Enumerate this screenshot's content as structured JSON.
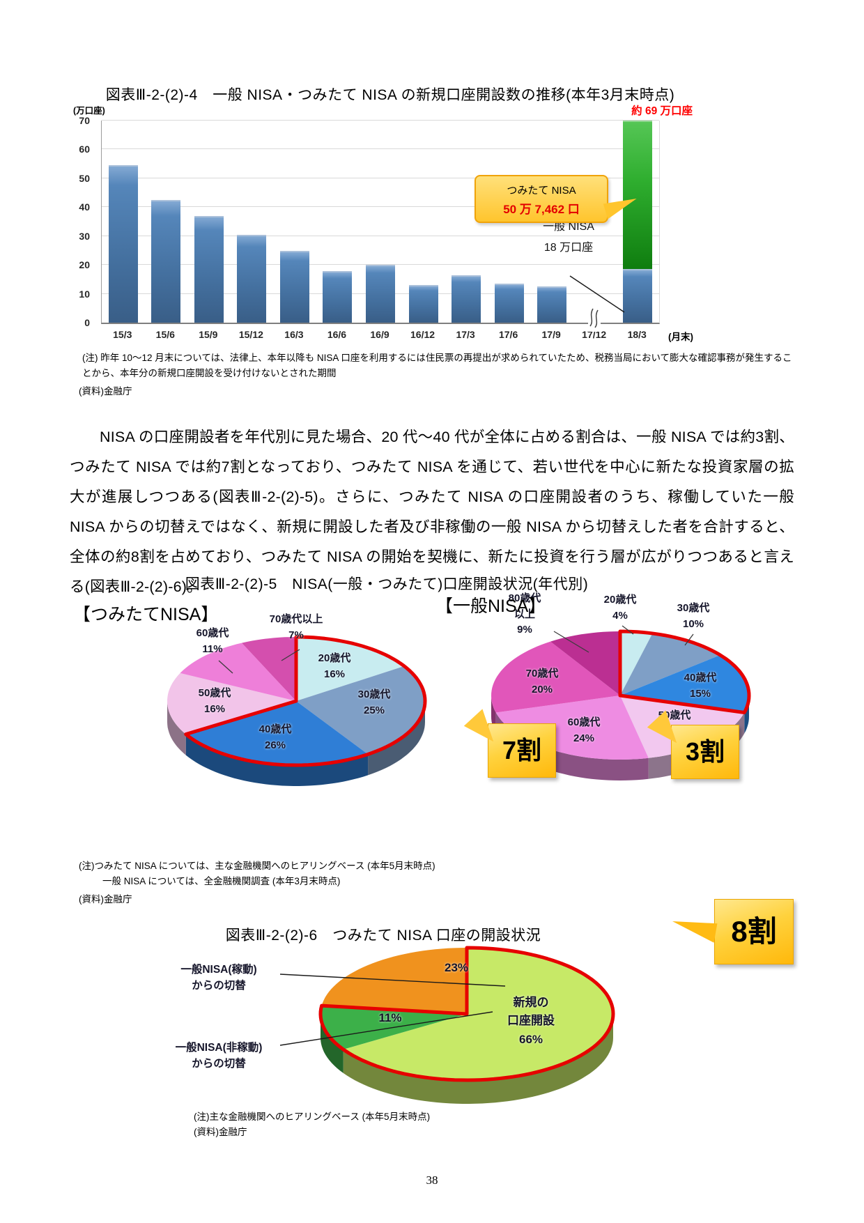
{
  "page_number": "38",
  "fig4": {
    "note": "(注) 昨年 10〜12 月末については、法律上、本年以降も NISA 口座を利用するには住民票の再提出が求められていたため、税務当局において膨大な確認事務が発生することから、本年分の新規口座開設を受け付けないとされた期間",
    "source": "(資料)金融庁"
  },
  "body_paragraph": "NISA の口座開設者を年代別に見た場合、20 代〜40 代が全体に占める割合は、一般 NISA では約3割、つみたて NISA では約7割となっており、つみたて NISA を通じて、若い世代を中心に新たな投資家層の拡大が進展しつつある(図表Ⅲ-2-(2)-5)。さらに、つみたて NISA の口座開設者のうち、稼働していた一般 NISA からの切替えではなく、新規に開設した者及び非稼働の一般 NISA から切替えした者を合計すると、全体の約8割を占めており、つみたて NISA の開始を契機に、新たに投資を行う層が広がりつつあると言える(図表Ⅲ-2-(2)-6)。",
  "fig5": {
    "title": "図表Ⅲ-2-(2)-5　NISA(一般・つみたて)口座開設状況(年代別)",
    "note1": "(注)つみたて NISA については、主な金融機関へのヒアリングベース (本年5月末時点)",
    "note2": "一般 NISA については、全金融機関調査 (本年3月末時点)",
    "source": "(資料)金融庁"
  },
  "fig6": {
    "title": "図表Ⅲ-2-(2)-6　つみたて NISA 口座の開設状況",
    "note": "(注)主な金融機関へのヒアリングベース (本年5月末時点)",
    "source": "(資料)金融庁"
  },
  "chart_data": [
    {
      "id": "fig4",
      "type": "bar",
      "title": "図表Ⅲ-2-(2)-4　一般 NISA・つみたて NISA の新規口座開設数の推移(本年3月末時点)",
      "y_unit": "(万口座)",
      "x_unit": "(月末)",
      "ylim": [
        0,
        70
      ],
      "yticks": [
        0,
        10,
        20,
        30,
        40,
        50,
        60,
        70
      ],
      "categories": [
        "15/3",
        "15/6",
        "15/9",
        "15/12",
        "16/3",
        "16/6",
        "16/9",
        "16/12",
        "17/3",
        "17/6",
        "17/9",
        "17/12",
        "18/3"
      ],
      "axis_break_category": "17/12",
      "series": [
        {
          "name": "一般NISA",
          "color": "#4a7ab2",
          "values": [
            54,
            42,
            36.5,
            30,
            24.5,
            17.5,
            19.5,
            12.5,
            16,
            13,
            12,
            null,
            18
          ]
        },
        {
          "name": "つみたてNISA",
          "color": "#2aa52a",
          "values": [
            null,
            null,
            null,
            null,
            null,
            null,
            null,
            null,
            null,
            null,
            null,
            null,
            51
          ]
        }
      ],
      "annotations": {
        "total": "約 69 万口座",
        "tsumitate_name": "つみたて NISA",
        "tsumitate_value": "50 万 7,462 口",
        "ippan_name": "一般 NISA",
        "ippan_value": "18 万口座"
      }
    },
    {
      "id": "fig5_tsumitate",
      "type": "pie",
      "title": "【つみたてNISA】",
      "slices": [
        {
          "label": "20歳代",
          "value": 16,
          "pct": "16%",
          "color": "#c8ecf0"
        },
        {
          "label": "30歳代",
          "value": 25,
          "pct": "25%",
          "color": "#7f9fc6"
        },
        {
          "label": "40歳代",
          "value": 26,
          "pct": "26%",
          "color": "#2f7ed6"
        },
        {
          "label": "50歳代",
          "value": 16,
          "pct": "16%",
          "color": "#f2c4e9"
        },
        {
          "label": "60歳代",
          "value": 11,
          "pct": "11%",
          "color": "#ee7fd9"
        },
        {
          "label": "70歳代以上",
          "value": 7,
          "pct": "7%",
          "color": "#d44fae"
        }
      ],
      "highlight": {
        "start_index": 0,
        "end_index": 2,
        "label": "7割",
        "color": "#e60000"
      }
    },
    {
      "id": "fig5_ippan",
      "type": "pie",
      "title": "【一般NISA】",
      "slices": [
        {
          "label": "20歳代",
          "value": 4,
          "pct": "4%",
          "color": "#c8ecf0"
        },
        {
          "label": "30歳代",
          "value": 10,
          "pct": "10%",
          "color": "#7f9fc6"
        },
        {
          "label": "40歳代",
          "value": 15,
          "pct": "15%",
          "color": "#2f87e0"
        },
        {
          "label": "50歳代",
          "value": 17,
          "pct": "17%",
          "color": "#f2c8ef"
        },
        {
          "label": "60歳代",
          "value": 24,
          "pct": "24%",
          "color": "#ee8ce2"
        },
        {
          "label": "70歳代",
          "value": 20,
          "pct": "20%",
          "color": "#e156ba"
        },
        {
          "label": "80歳代以上",
          "label_line1": "80歳代",
          "label_line2": "以上",
          "value": 9,
          "pct": "9%",
          "color": "#bb2f92"
        }
      ],
      "highlight": {
        "start_index": 0,
        "end_index": 2,
        "label": "3割",
        "color": "#e60000"
      }
    },
    {
      "id": "fig6",
      "type": "pie",
      "title": "つみたて NISA 口座の開設状況",
      "slices": [
        {
          "label": "新規の口座開設",
          "label_line1": "新規の",
          "label_line2": "口座開設",
          "value": 66,
          "pct": "66%",
          "color": "#c7e967"
        },
        {
          "label": "一般NISA(非稼動)からの切替",
          "label_line1": "一般NISA(非稼動)",
          "label_line2": "からの切替",
          "value": 11,
          "pct": "11%",
          "color": "#3cb049"
        },
        {
          "label": "一般NISA(稼動)からの切替",
          "label_line1": "一般NISA(稼動)",
          "label_line2": "からの切替",
          "value": 23,
          "pct": "23%",
          "color": "#f0921e"
        }
      ],
      "highlight": {
        "start_index": 0,
        "end_index": 1,
        "label": "8割",
        "color": "#e60000"
      }
    }
  ]
}
